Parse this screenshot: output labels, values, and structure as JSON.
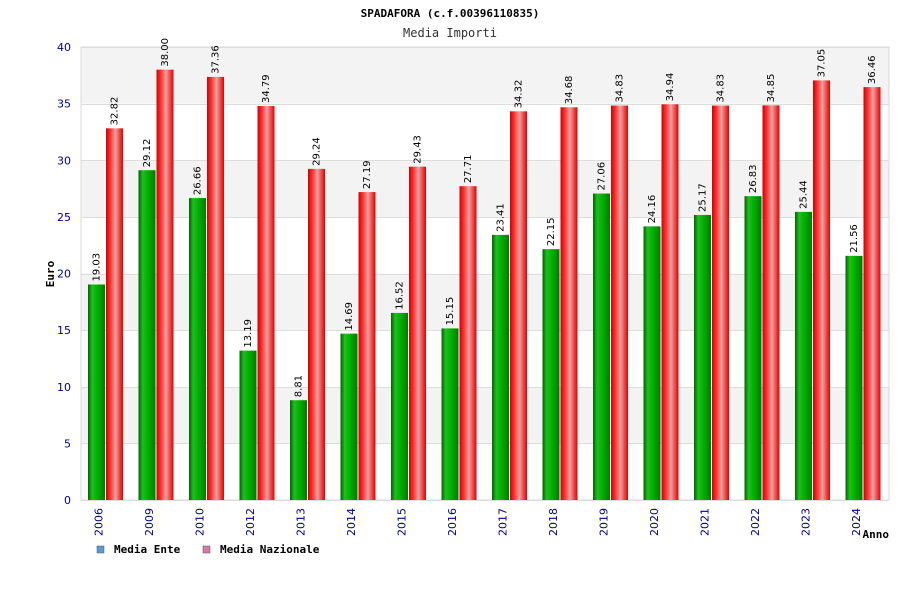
{
  "chart_data": {
    "type": "bar",
    "title": "SPADAFORA (c.f.00396110835)",
    "subtitle": "Media Importi",
    "xlabel": "Anno",
    "ylabel": "Euro",
    "ylim": [
      0,
      40
    ],
    "yticks": [
      0,
      5,
      10,
      15,
      20,
      25,
      30,
      35,
      40
    ],
    "grid": true,
    "legend_position": "bottom-left",
    "categories": [
      "2006",
      "2009",
      "2010",
      "2012",
      "2013",
      "2014",
      "2015",
      "2016",
      "2017",
      "2018",
      "2019",
      "2020",
      "2021",
      "2022",
      "2023",
      "2024"
    ],
    "series": [
      {
        "name": "Media Ente",
        "color": "#00aa00",
        "legend_color": "#5b9bd5",
        "values": [
          19.03,
          29.12,
          26.66,
          13.19,
          8.81,
          14.69,
          16.52,
          15.15,
          23.41,
          22.15,
          27.06,
          24.16,
          25.17,
          26.83,
          25.44,
          21.56
        ],
        "labels": [
          "19.03",
          "29.12",
          "26.66",
          "13.19",
          "8.81",
          "14.69",
          "16.52",
          "15.15",
          "23.41",
          "22.15",
          "27.06",
          "24.16",
          "25.17",
          "26.83",
          "25.44",
          "21.56"
        ]
      },
      {
        "name": "Media Nazionale",
        "color": "#ee1111",
        "legend_color": "#d878a8",
        "values": [
          32.82,
          38.0,
          37.36,
          34.79,
          29.24,
          27.19,
          29.43,
          27.71,
          34.32,
          34.68,
          34.83,
          34.94,
          34.83,
          34.85,
          37.05,
          36.46
        ],
        "labels": [
          "32.82",
          "38.00",
          "37.36",
          "34.79",
          "29.24",
          "27.19",
          "29.43",
          "27.71",
          "34.32",
          "34.68",
          "34.83",
          "34.94",
          "34.83",
          "34.85",
          "37.05",
          "36.46"
        ]
      }
    ]
  }
}
